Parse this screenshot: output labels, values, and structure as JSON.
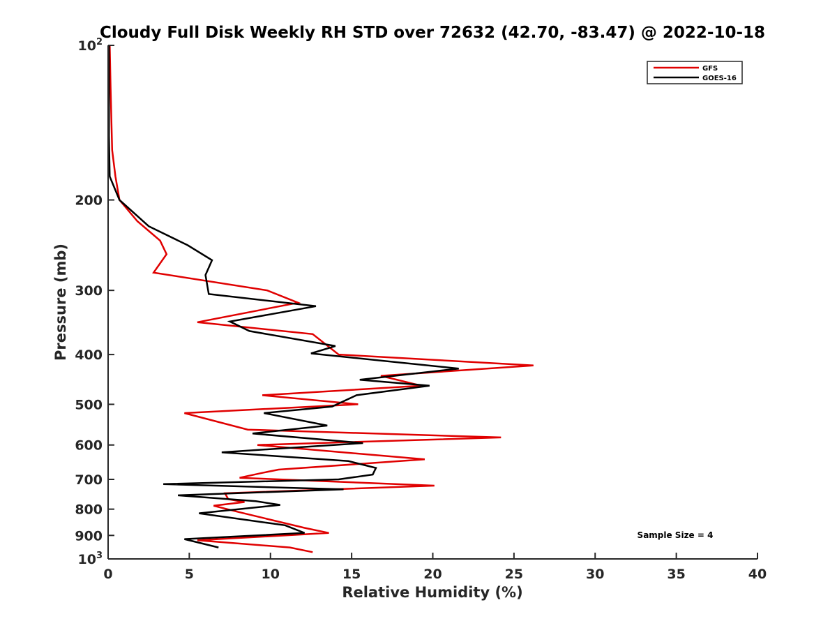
{
  "chart_data": {
    "type": "line",
    "title": "Cloudy Full Disk Weekly RH STD over 72632 (42.70, -83.47) @ 2022-10-18",
    "xlabel": "Relative Humidity (%)",
    "ylabel": "Pressure (mb)",
    "xlim": [
      0,
      40
    ],
    "ylim": [
      100,
      1000
    ],
    "y_scale": "log",
    "y_reversed": true,
    "xticks": [
      "0",
      "5",
      "10",
      "15",
      "20",
      "25",
      "30",
      "35",
      "40"
    ],
    "yticks": [
      {
        "value": 100,
        "base": "10",
        "exp": "2"
      },
      {
        "value": 200,
        "label": "200"
      },
      {
        "value": 300,
        "label": "300"
      },
      {
        "value": 400,
        "label": "400"
      },
      {
        "value": 500,
        "label": "500"
      },
      {
        "value": 600,
        "label": "600"
      },
      {
        "value": 700,
        "label": "700"
      },
      {
        "value": 800,
        "label": "800"
      },
      {
        "value": 900,
        "label": "900"
      },
      {
        "value": 1000,
        "base": "10",
        "exp": "3"
      }
    ],
    "legend_position": "top-right",
    "annotation": "Sample Size = 4",
    "series": [
      {
        "name": "GFS",
        "color": "#e00000",
        "points": [
          [
            0.1,
            100
          ],
          [
            0.15,
            120
          ],
          [
            0.2,
            140
          ],
          [
            0.25,
            160
          ],
          [
            0.45,
            180
          ],
          [
            0.7,
            200
          ],
          [
            1.8,
            220
          ],
          [
            3.2,
            240
          ],
          [
            3.6,
            255
          ],
          [
            2.8,
            277
          ],
          [
            9.8,
            300
          ],
          [
            11.7,
            317
          ],
          [
            5.5,
            346
          ],
          [
            12.6,
            365
          ],
          [
            14.2,
            400
          ],
          [
            26.2,
            420
          ],
          [
            16.8,
            440
          ],
          [
            19.3,
            460
          ],
          [
            9.5,
            480
          ],
          [
            15.4,
            500
          ],
          [
            4.7,
            520
          ],
          [
            8.6,
            560
          ],
          [
            24.2,
            580
          ],
          [
            9.2,
            600
          ],
          [
            19.5,
            640
          ],
          [
            10.5,
            670
          ],
          [
            9.5,
            680
          ],
          [
            8.1,
            695
          ],
          [
            20.1,
            720
          ],
          [
            7.2,
            745
          ],
          [
            7.4,
            765
          ],
          [
            8.4,
            775
          ],
          [
            6.5,
            788
          ],
          [
            8.0,
            810
          ],
          [
            12.1,
            870
          ],
          [
            13.6,
            890
          ],
          [
            5.5,
            920
          ],
          [
            11.2,
            950
          ],
          [
            12.6,
            970
          ]
        ]
      },
      {
        "name": "GOES-16",
        "color": "#000000",
        "points": [
          [
            0.05,
            100
          ],
          [
            0.05,
            150
          ],
          [
            0.1,
            180
          ],
          [
            0.7,
            200
          ],
          [
            2.5,
            225
          ],
          [
            4.9,
            245
          ],
          [
            6.4,
            262
          ],
          [
            6.0,
            280
          ],
          [
            6.2,
            305
          ],
          [
            12.8,
            322
          ],
          [
            7.5,
            345
          ],
          [
            8.7,
            360
          ],
          [
            14.0,
            385
          ],
          [
            12.5,
            398
          ],
          [
            21.6,
            426
          ],
          [
            15.5,
            448
          ],
          [
            19.8,
            460
          ],
          [
            15.3,
            480
          ],
          [
            13.8,
            505
          ],
          [
            9.6,
            520
          ],
          [
            13.5,
            550
          ],
          [
            8.9,
            570
          ],
          [
            15.7,
            595
          ],
          [
            7.0,
            620
          ],
          [
            14.8,
            645
          ],
          [
            16.5,
            665
          ],
          [
            16.3,
            685
          ],
          [
            14.2,
            700
          ],
          [
            3.4,
            715
          ],
          [
            14.5,
            732
          ],
          [
            4.3,
            752
          ],
          [
            9.1,
            772
          ],
          [
            10.6,
            785
          ],
          [
            5.6,
            815
          ],
          [
            10.9,
            860
          ],
          [
            12.1,
            890
          ],
          [
            4.7,
            915
          ],
          [
            6.8,
            950
          ]
        ]
      }
    ]
  }
}
